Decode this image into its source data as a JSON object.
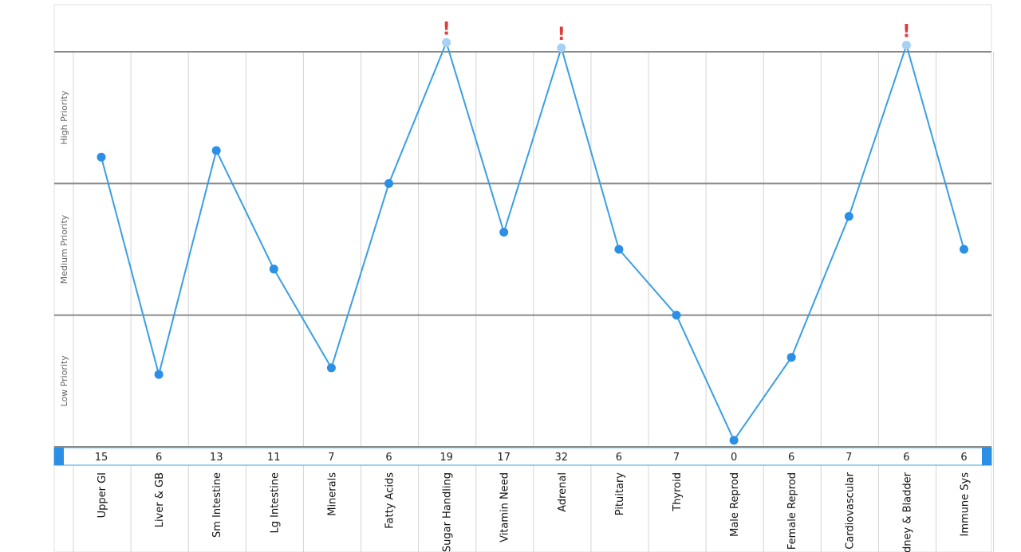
{
  "chart_data": {
    "type": "line",
    "categories": [
      "Upper GI",
      "Liver & GB",
      "Sm Intestine",
      "Lg Intestine",
      "Minerals",
      "Fatty Acids",
      "Sugar Handling",
      "Vitamin Need",
      "Adrenal",
      "Pituitary",
      "Thyroid",
      "Male Reprod",
      "Female Reprod",
      "Cardiovascular",
      "Kidney & Bladder",
      "Immune Sys"
    ],
    "category_labels_shown": [
      "Upper GI",
      "Liver & GB",
      "Sm Intestine",
      "Lg Intestine",
      "Minerals",
      "Fatty Acids",
      "Sugar Handling",
      "Vitamin Need",
      "Adrenal",
      "Pituitary",
      "Thyroid",
      "Male Reprod",
      "Female Reprod",
      "Cardiovascular",
      "dney & Bladder",
      "Immune Sys"
    ],
    "counts": [
      "15",
      "6",
      "13",
      "11",
      "7",
      "6",
      "19",
      "17",
      "32",
      "6",
      "7",
      "0",
      "6",
      "7",
      "6",
      "6"
    ],
    "values": [
      2.2,
      0.55,
      2.25,
      1.35,
      0.6,
      2.0,
      3.07,
      1.63,
      3.03,
      1.5,
      1.0,
      0.05,
      0.68,
      1.75,
      3.05,
      1.5
    ],
    "alert": [
      false,
      false,
      false,
      false,
      false,
      false,
      true,
      false,
      true,
      false,
      false,
      false,
      false,
      false,
      true,
      false
    ],
    "bands": [
      "Low Priority",
      "Medium Priority",
      "High Priority"
    ],
    "alert_symbol": "!",
    "ylim": [
      0,
      3
    ],
    "grid": true,
    "colors": {
      "line": "#3a9fe0",
      "point": "#2b8fe6",
      "alert_point": "#a7d0f5",
      "alert_mark": "#e03a3a",
      "band_line": "#8a8a8a",
      "grid_line": "#d4d4d4",
      "scrollbar": "#2b8fe6"
    }
  }
}
